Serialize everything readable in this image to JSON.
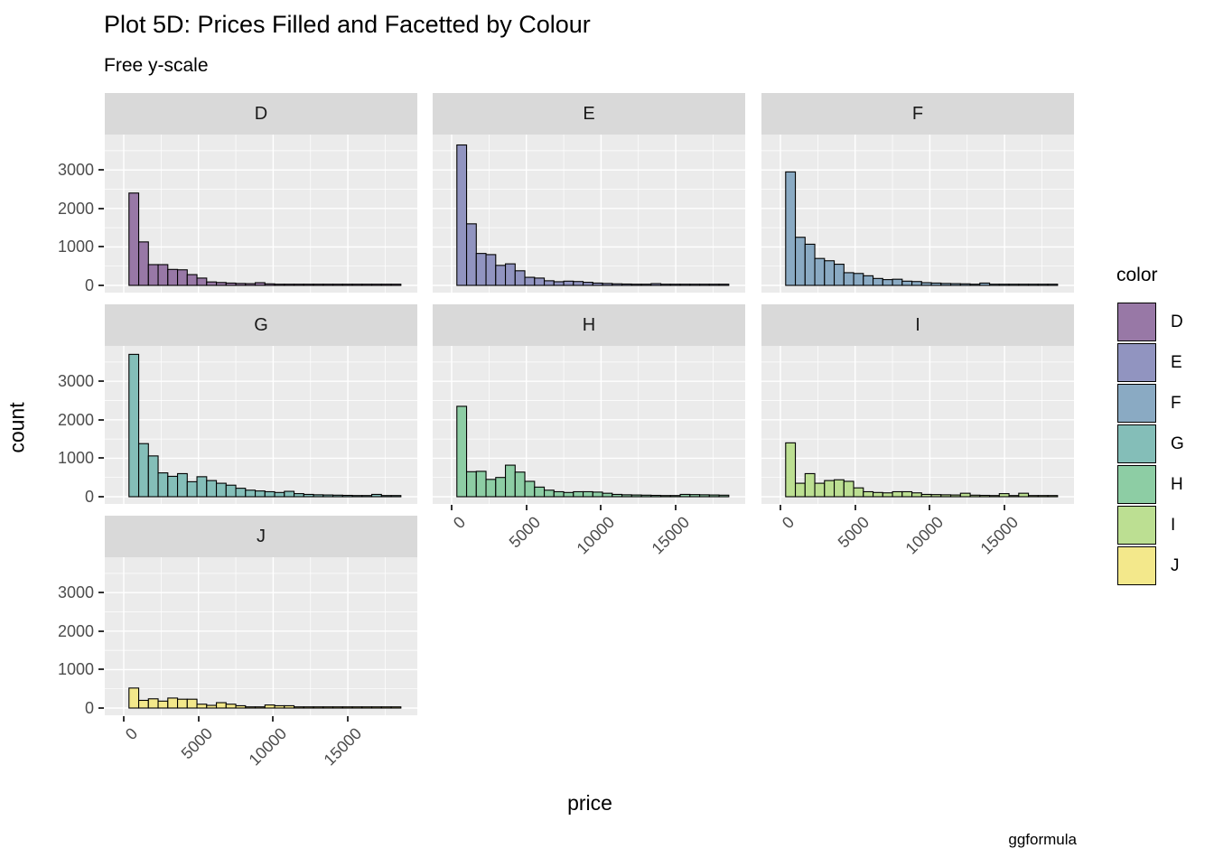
{
  "title": "Plot 5D: Prices Filled and Facetted by Colour",
  "subtitle": "Free y-scale",
  "caption": "ggformula",
  "axes": {
    "x_title": "price",
    "y_title": "count",
    "x_tick_labels": [
      "0",
      "5000",
      "10000",
      "15000"
    ],
    "y_tick_labels": [
      "0",
      "1000",
      "2000",
      "3000"
    ]
  },
  "legend": {
    "title": "color",
    "entries": [
      {
        "label": "D",
        "color": "#9878A6"
      },
      {
        "label": "E",
        "color": "#9194C0"
      },
      {
        "label": "F",
        "color": "#8AAAC3"
      },
      {
        "label": "G",
        "color": "#84BEB8"
      },
      {
        "label": "H",
        "color": "#8DCDA4"
      },
      {
        "label": "I",
        "color": "#BCDF92"
      },
      {
        "label": "J",
        "color": "#F3E88B"
      }
    ]
  },
  "chart_data": {
    "type": "bar",
    "subtype": "faceted-histogram",
    "title": "Plot 5D: Prices Filled and Facetted by Colour",
    "subtitle": "Free y-scale",
    "xlabel": "price",
    "ylabel": "count",
    "facet_variable": "color",
    "grid": true,
    "legend_position": "right",
    "bin_start": 350,
    "bin_width": 650,
    "x_major_ticks": [
      0,
      5000,
      10000,
      15000
    ],
    "x_minor_ticks": [
      2500,
      7500,
      12500,
      17500
    ],
    "y_major_ticks": [
      0,
      1000,
      2000,
      3000
    ],
    "y_minor_ticks": [
      500,
      1500,
      2500,
      3500
    ],
    "xlim": [
      -1270,
      19650
    ],
    "ylim": [
      0,
      3900
    ],
    "facets": [
      {
        "label": "D",
        "fill": "#9878A6",
        "row": 0,
        "col": 0,
        "show_y_axis": true,
        "show_x_axis": false,
        "counts": [
          2400,
          1130,
          540,
          540,
          415,
          405,
          280,
          190,
          90,
          75,
          60,
          50,
          45,
          70,
          40,
          30,
          25,
          20,
          18,
          15,
          12,
          10,
          8,
          8,
          6,
          5,
          5,
          4
        ]
      },
      {
        "label": "E",
        "fill": "#9194C0",
        "row": 0,
        "col": 1,
        "show_y_axis": false,
        "show_x_axis": false,
        "counts": [
          3650,
          1600,
          830,
          800,
          520,
          560,
          380,
          210,
          190,
          120,
          95,
          110,
          100,
          80,
          60,
          50,
          40,
          35,
          30,
          25,
          45,
          20,
          15,
          12,
          10,
          8,
          6,
          5
        ]
      },
      {
        "label": "F",
        "fill": "#8AAAC3",
        "row": 0,
        "col": 2,
        "show_y_axis": false,
        "show_x_axis": false,
        "counts": [
          2950,
          1250,
          1070,
          700,
          640,
          550,
          330,
          310,
          250,
          180,
          150,
          160,
          110,
          100,
          70,
          60,
          50,
          45,
          40,
          30,
          60,
          25,
          20,
          15,
          12,
          10,
          8,
          6
        ]
      },
      {
        "label": "G",
        "fill": "#84BEB8",
        "row": 1,
        "col": 0,
        "show_y_axis": true,
        "show_x_axis": false,
        "counts": [
          3700,
          1380,
          1060,
          620,
          530,
          600,
          390,
          520,
          420,
          350,
          300,
          220,
          170,
          150,
          130,
          110,
          140,
          80,
          60,
          50,
          45,
          40,
          35,
          30,
          25,
          60,
          20,
          15
        ]
      },
      {
        "label": "H",
        "fill": "#8DCDA4",
        "row": 1,
        "col": 1,
        "show_y_axis": false,
        "show_x_axis": true,
        "counts": [
          2350,
          650,
          660,
          450,
          500,
          820,
          640,
          400,
          250,
          170,
          130,
          110,
          130,
          130,
          120,
          90,
          60,
          50,
          45,
          40,
          35,
          30,
          25,
          60,
          55,
          50,
          45,
          40
        ]
      },
      {
        "label": "I",
        "fill": "#BCDF92",
        "row": 1,
        "col": 2,
        "show_y_axis": false,
        "show_x_axis": true,
        "counts": [
          1400,
          350,
          600,
          350,
          420,
          440,
          400,
          230,
          130,
          110,
          100,
          130,
          130,
          100,
          60,
          55,
          50,
          45,
          90,
          40,
          35,
          30,
          80,
          25,
          90,
          20,
          15,
          10
        ]
      },
      {
        "label": "J",
        "fill": "#F3E88B",
        "row": 2,
        "col": 0,
        "show_y_axis": true,
        "show_x_axis": true,
        "counts": [
          520,
          200,
          240,
          180,
          260,
          230,
          230,
          100,
          70,
          140,
          100,
          60,
          30,
          20,
          80,
          60,
          60,
          30,
          10,
          30,
          20,
          10,
          8,
          5,
          5,
          4,
          3,
          2
        ]
      }
    ]
  },
  "theme": {
    "panel_background": "#EBEBEB",
    "strip_background": "#D9D9D9",
    "grid_color": "#FFFFFF",
    "axis_text_color": "#4D4D4D",
    "tick_color": "#333333",
    "bar_stroke": "#000000"
  }
}
